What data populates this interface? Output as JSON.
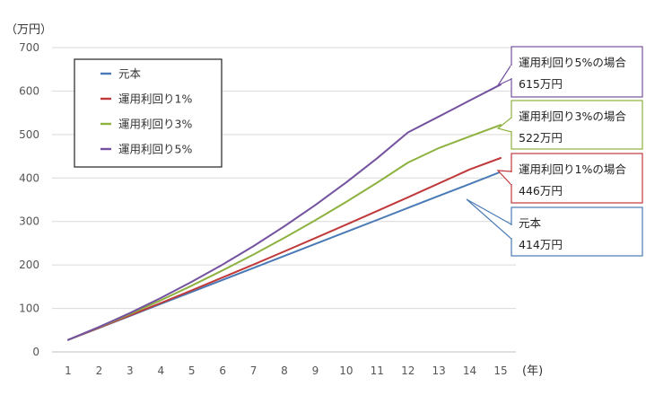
{
  "chart_data": {
    "type": "line",
    "y_unit_label": "（万円）",
    "x_unit_label": "(年)",
    "x": [
      1,
      2,
      3,
      4,
      5,
      6,
      7,
      8,
      9,
      10,
      11,
      12,
      13,
      14,
      15
    ],
    "ylim": [
      0,
      700
    ],
    "yticks": [
      0,
      100,
      200,
      300,
      400,
      500,
      600,
      700
    ],
    "grid": "horizontal",
    "legend_position": "top-left",
    "series": [
      {
        "name": "元本",
        "color": "#4a7ab5",
        "values": [
          27.6,
          55.2,
          82.8,
          110.4,
          138,
          165.6,
          193.2,
          220.8,
          248.4,
          276,
          303.6,
          331.2,
          358.8,
          386.4,
          414
        ]
      },
      {
        "name": "運用利回り1%",
        "color": "#c0393b",
        "values": [
          27.6,
          55.6,
          84.0,
          112.6,
          141.7,
          171.2,
          201.0,
          231.2,
          261.8,
          292.7,
          324.0,
          355.6,
          387.5,
          419.8,
          446
        ]
      },
      {
        "name": "運用利回り3%",
        "color": "#8db240",
        "values": [
          27.6,
          56.7,
          87.1,
          119.0,
          152.4,
          187.4,
          224.1,
          262.5,
          302.8,
          345.0,
          389.2,
          435.4,
          468.9,
          495.8,
          522
        ]
      },
      {
        "name": "運用利回り5%",
        "color": "#7552a0",
        "values": [
          27.6,
          57.4,
          89.5,
          124.1,
          161.2,
          200.9,
          243.5,
          289.1,
          337.8,
          389.8,
          445.4,
          504.8,
          541.5,
          578.4,
          615
        ]
      }
    ],
    "callouts": [
      {
        "title": "運用利回り5%の場合",
        "value": "615万円",
        "series": 3
      },
      {
        "title": "運用利回り3%の場合",
        "value": "522万円",
        "series": 2
      },
      {
        "title": "運用利回り1%の場合",
        "value": "446万円",
        "series": 1
      },
      {
        "title": "元本",
        "value": "414万円",
        "series": 0
      }
    ]
  }
}
